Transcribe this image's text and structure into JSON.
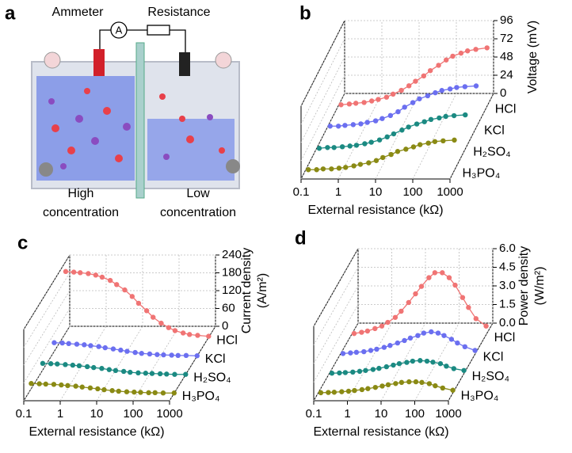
{
  "panel_a": {
    "panel": "a",
    "ammeter": "Ammeter",
    "ammeter_symbol": "A",
    "resistance": "Resistance",
    "left_label": [
      "High",
      "concentration"
    ],
    "right_label": [
      "Low",
      "concentration"
    ]
  },
  "chart_data": [
    {
      "type": "line",
      "panel": "b",
      "xlabel": "External resistance (kΩ)",
      "ylabel": [
        "Voltage (mV)"
      ],
      "log_x": true,
      "grid": true,
      "xlim": [
        0.1,
        1000
      ],
      "xticks": [
        0.1,
        1,
        10,
        100,
        1000
      ],
      "ylim": [
        0,
        96
      ],
      "yticks": [
        0,
        24,
        48,
        72,
        96
      ],
      "x": [
        0.12,
        0.2,
        0.3,
        0.5,
        0.8,
        1.2,
        2,
        3,
        5,
        8,
        12,
        20,
        30,
        50,
        80,
        120,
        200,
        300,
        500,
        1000
      ],
      "series": [
        {
          "name": "HCl",
          "color": "#f07474",
          "values": [
            2,
            3,
            4,
            5,
            7,
            9,
            12,
            16,
            21,
            27,
            33,
            40,
            47,
            54,
            61,
            66,
            70,
            73,
            75,
            77
          ]
        },
        {
          "name": "KCl",
          "color": "#6b6ff0",
          "values": [
            2,
            2,
            3,
            4,
            5,
            7,
            9,
            12,
            16,
            21,
            27,
            33,
            38,
            42,
            46,
            49,
            51,
            53,
            54,
            55
          ]
        },
        {
          "name": "H₂SO₄",
          "color": "#1b8a82",
          "values": [
            1,
            2,
            2,
            3,
            4,
            5,
            7,
            9,
            12,
            16,
            20,
            25,
            29,
            33,
            36,
            39,
            41,
            43,
            44,
            45
          ]
        },
        {
          "name": "H₃PO₄",
          "color": "#8a8a14",
          "values": [
            1,
            1,
            2,
            2,
            3,
            4,
            6,
            8,
            10,
            13,
            17,
            21,
            25,
            28,
            31,
            34,
            36,
            38,
            39,
            40
          ]
        }
      ]
    },
    {
      "type": "line",
      "panel": "c",
      "xlabel": "External resistance (kΩ)",
      "ylabel": [
        "Current density",
        "(A/m²)"
      ],
      "log_x": true,
      "grid": true,
      "xlim": [
        0.1,
        1000
      ],
      "xticks": [
        0.1,
        1,
        10,
        100,
        1000
      ],
      "ylim": [
        0,
        240
      ],
      "yticks": [
        0,
        60,
        120,
        180,
        240
      ],
      "x": [
        0.12,
        0.2,
        0.3,
        0.5,
        0.8,
        1.2,
        2,
        3,
        5,
        8,
        12,
        20,
        30,
        50,
        80,
        120,
        200,
        300,
        500,
        1000
      ],
      "series": [
        {
          "name": "HCl",
          "color": "#f07474",
          "values": [
            222,
            220,
            218,
            215,
            210,
            203,
            192,
            178,
            160,
            138,
            115,
            90,
            68,
            48,
            33,
            23,
            15,
            10,
            7,
            4
          ]
        },
        {
          "name": "KCl",
          "color": "#6b6ff0",
          "values": [
            45,
            44,
            42,
            40,
            38,
            35,
            32,
            28,
            24,
            20,
            16,
            12,
            9,
            7,
            5,
            4,
            3,
            2,
            2,
            1
          ]
        },
        {
          "name": "H₂SO₄",
          "color": "#1b8a82",
          "values": [
            38,
            37,
            36,
            34,
            32,
            30,
            27,
            24,
            21,
            17,
            14,
            11,
            8,
            6,
            5,
            4,
            3,
            2,
            1,
            1
          ]
        },
        {
          "name": "H₃PO₄",
          "color": "#8a8a14",
          "values": [
            33,
            32,
            31,
            30,
            28,
            26,
            24,
            21,
            18,
            15,
            12,
            9,
            7,
            5,
            4,
            3,
            2,
            2,
            1,
            1
          ]
        }
      ]
    },
    {
      "type": "line",
      "panel": "d",
      "xlabel": "External resistance (kΩ)",
      "ylabel": [
        "Power density",
        "(W/m²)"
      ],
      "log_x": true,
      "grid": true,
      "xlim": [
        0.1,
        1000
      ],
      "xticks": [
        0.1,
        1,
        10,
        100,
        1000
      ],
      "ylim": [
        0,
        6
      ],
      "yticks": [
        {
          "value": 0,
          "label": "0.0"
        },
        1.5,
        {
          "value": 3,
          "label": "3.0"
        },
        4.5,
        {
          "value": 6,
          "label": "6.0"
        }
      ],
      "x": [
        0.12,
        0.2,
        0.3,
        0.5,
        0.8,
        1.2,
        2,
        3,
        5,
        8,
        12,
        20,
        30,
        50,
        80,
        120,
        200,
        300,
        500,
        1000
      ],
      "series": [
        {
          "name": "HCl",
          "color": "#f07474",
          "values": [
            0.1,
            0.2,
            0.3,
            0.5,
            0.7,
            1.0,
            1.4,
            1.9,
            2.6,
            3.3,
            3.9,
            4.6,
            5.0,
            5.0,
            4.6,
            4.0,
            3.0,
            2.2,
            1.3,
            0.7
          ]
        },
        {
          "name": "KCl",
          "color": "#6b6ff0",
          "values": [
            0.05,
            0.1,
            0.15,
            0.2,
            0.3,
            0.4,
            0.55,
            0.7,
            0.9,
            1.1,
            1.3,
            1.5,
            1.7,
            1.8,
            1.7,
            1.5,
            1.2,
            0.9,
            0.6,
            0.3
          ]
        },
        {
          "name": "H₂SO₄",
          "color": "#1b8a82",
          "values": [
            0.03,
            0.05,
            0.08,
            0.12,
            0.18,
            0.25,
            0.33,
            0.42,
            0.55,
            0.68,
            0.8,
            0.9,
            1.0,
            1.05,
            1.0,
            0.92,
            0.8,
            0.6,
            0.4,
            0.25
          ]
        },
        {
          "name": "H₃PO₄",
          "color": "#8a8a14",
          "values": [
            0.02,
            0.04,
            0.06,
            0.1,
            0.14,
            0.2,
            0.27,
            0.35,
            0.45,
            0.56,
            0.66,
            0.76,
            0.85,
            0.9,
            0.9,
            0.85,
            0.75,
            0.58,
            0.4,
            0.22
          ]
        }
      ]
    }
  ]
}
